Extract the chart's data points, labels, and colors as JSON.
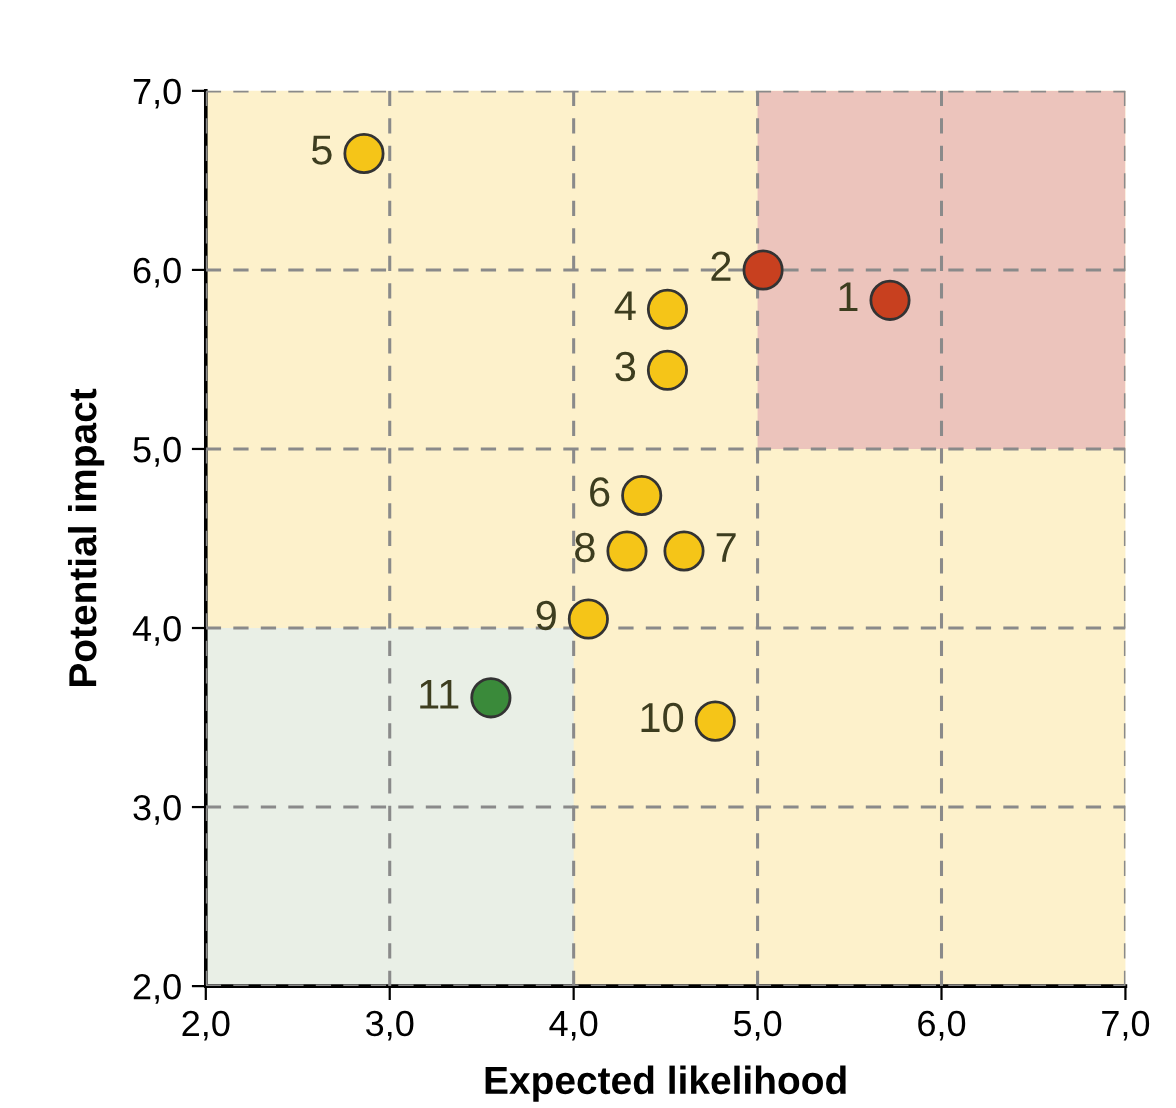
{
  "chart_data": {
    "type": "scatter",
    "xlabel": "Expected likelihood",
    "ylabel": "Potential impact",
    "series": [
      {
        "color": "#f5c518",
        "x": [
          4.51,
          4.51,
          2.86,
          4.37,
          4.6,
          4.29,
          4.08,
          4.77
        ],
        "values": [
          5.44,
          5.78,
          6.65,
          4.74,
          4.43,
          4.43,
          4.05,
          3.48
        ]
      },
      {
        "color": "#c8401f",
        "x": [
          5.72,
          5.03
        ],
        "values": [
          5.83,
          6.0
        ]
      },
      {
        "color": "#3a8a3a",
        "x": [
          3.55
        ],
        "values": [
          3.61
        ]
      },
      {
        "type": "bar",
        "color": "#ecc4bc",
        "x": [
          6
        ],
        "base": [
          5
        ],
        "values": [
          2
        ]
      },
      {
        "type": "bar",
        "color": "#e9efe6",
        "x": [
          3
        ],
        "base": [
          2
        ],
        "values": [
          2
        ]
      }
    ],
    "annotations": [
      {
        "text": "1",
        "x": 5.72,
        "y": 5.83
      },
      {
        "text": "2",
        "x": 5.03,
        "y": 6.0
      },
      {
        "text": "3",
        "x": 4.51,
        "y": 5.44
      },
      {
        "text": "4",
        "x": 4.51,
        "y": 5.78
      },
      {
        "text": "5",
        "x": 2.86,
        "y": 6.65
      },
      {
        "text": "6",
        "x": 4.37,
        "y": 4.74
      },
      {
        "text": "7",
        "x": 4.6,
        "y": 4.43
      },
      {
        "text": "8",
        "x": 4.29,
        "y": 4.43
      },
      {
        "text": "9",
        "x": 4.08,
        "y": 4.05
      },
      {
        "text": "10",
        "x": 4.77,
        "y": 3.48
      },
      {
        "text": "11",
        "x": 3.55,
        "y": 3.61
      }
    ],
    "xlim": [
      2,
      7
    ],
    "ylim": [
      2,
      7
    ],
    "xticks": [
      {
        "value": 2,
        "label": "2,0"
      },
      {
        "value": 3,
        "label": "3,0"
      },
      {
        "value": 4,
        "label": "4,0"
      },
      {
        "value": 5,
        "label": "5,0"
      },
      {
        "value": 6,
        "label": "6,0"
      },
      {
        "value": 7,
        "label": "7,0"
      }
    ],
    "yticks": [
      {
        "value": 2,
        "label": "2,0"
      },
      {
        "value": 3,
        "label": "3,0"
      },
      {
        "value": 4,
        "label": "4,0"
      },
      {
        "value": 5,
        "label": "5,0"
      },
      {
        "value": 6,
        "label": "6,0"
      },
      {
        "value": 7,
        "label": "7,0"
      }
    ],
    "grid": true,
    "marker": "circle",
    "legend": false
  }
}
